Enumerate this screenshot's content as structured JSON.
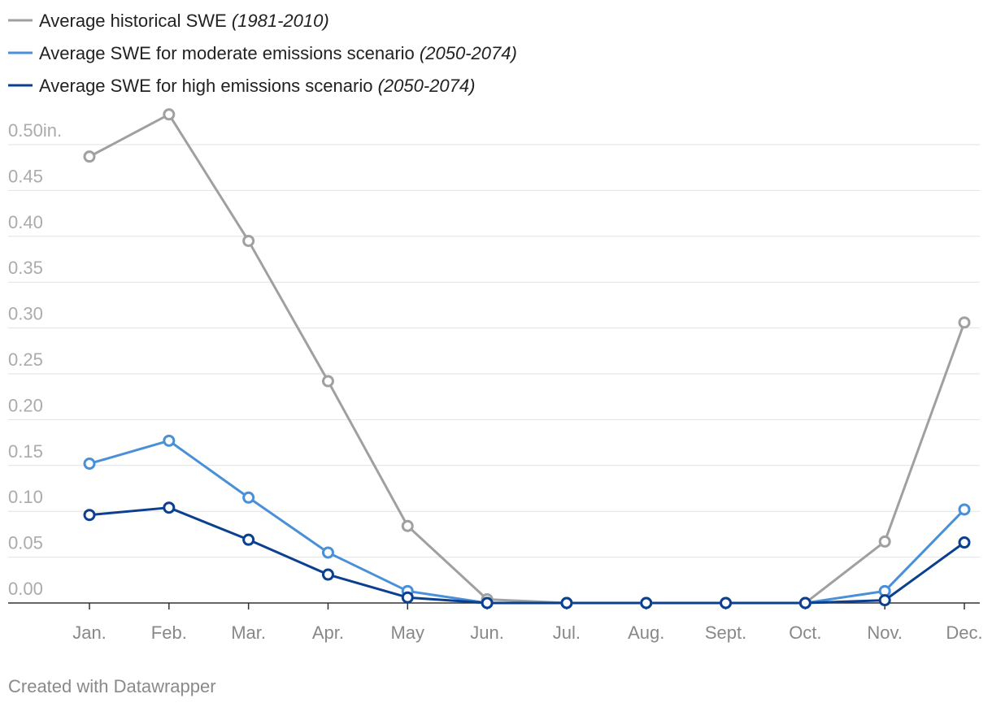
{
  "chart_data": {
    "type": "line",
    "categories": [
      "Jan.",
      "Feb.",
      "Mar.",
      "Apr.",
      "May",
      "Jun.",
      "Jul.",
      "Aug.",
      "Sept.",
      "Oct.",
      "Nov.",
      "Dec."
    ],
    "series": [
      {
        "name": "Average historical SWE",
        "period": "(1981-2010)",
        "color": "#a0a0a0",
        "values": [
          0.487,
          0.533,
          0.395,
          0.242,
          0.084,
          0.004,
          0,
          0,
          0,
          0,
          0.067,
          0.306
        ]
      },
      {
        "name": "Average SWE for moderate emissions scenario",
        "period": "(2050-2074)",
        "color": "#4a90d9",
        "values": [
          0.152,
          0.177,
          0.115,
          0.055,
          0.013,
          0,
          0,
          0,
          0,
          0,
          0.013,
          0.102
        ]
      },
      {
        "name": "Average SWE for high emissions scenario",
        "period": "(2050-2074)",
        "color": "#0b3f8f",
        "values": [
          0.096,
          0.104,
          0.069,
          0.031,
          0.006,
          0,
          0,
          0,
          0,
          0,
          0.003,
          0.066
        ]
      }
    ],
    "ylim": [
      0,
      0.5
    ],
    "yticks": [
      {
        "value": 0,
        "label": "0.00"
      },
      0.05,
      {
        "value": 0.1,
        "label": "0.10"
      },
      0.15,
      {
        "value": 0.2,
        "label": "0.20"
      },
      0.25,
      {
        "value": 0.3,
        "label": "0.30"
      },
      0.35,
      {
        "value": 0.4,
        "label": "0.40"
      },
      0.45,
      {
        "value": 0.5,
        "label": "0.50in."
      }
    ],
    "grid": true,
    "footer": "Created with Datawrapper"
  }
}
